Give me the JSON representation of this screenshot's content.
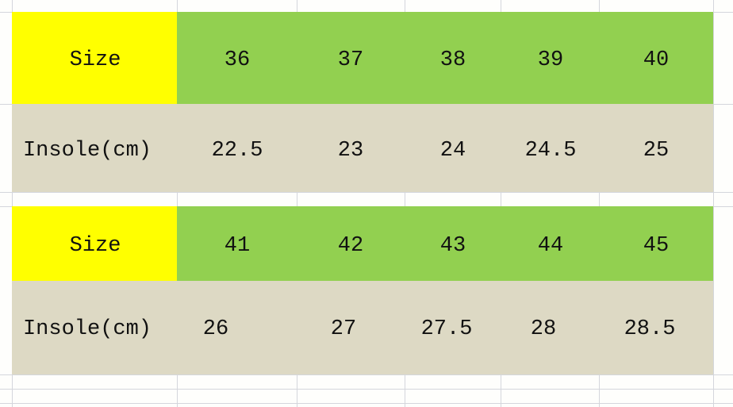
{
  "colors": {
    "size_label": "#ffff00",
    "size_row": "#92d050",
    "insole_row": "#ddd9c4",
    "grid": "#d4d6dc"
  },
  "tables": [
    {
      "size_label": "Size",
      "sizes": [
        "36",
        "37",
        "38",
        "39",
        "40"
      ],
      "insole_label": "Insole(cm)",
      "insoles": [
        "22.5",
        "23",
        "24",
        "24.5",
        "25"
      ]
    },
    {
      "size_label": "Size",
      "sizes": [
        "41",
        "42",
        "43",
        "44",
        "45"
      ],
      "insole_label": "Insole(cm)",
      "insoles": [
        "26",
        "27",
        "27.5",
        "28",
        "28.5"
      ]
    }
  ]
}
